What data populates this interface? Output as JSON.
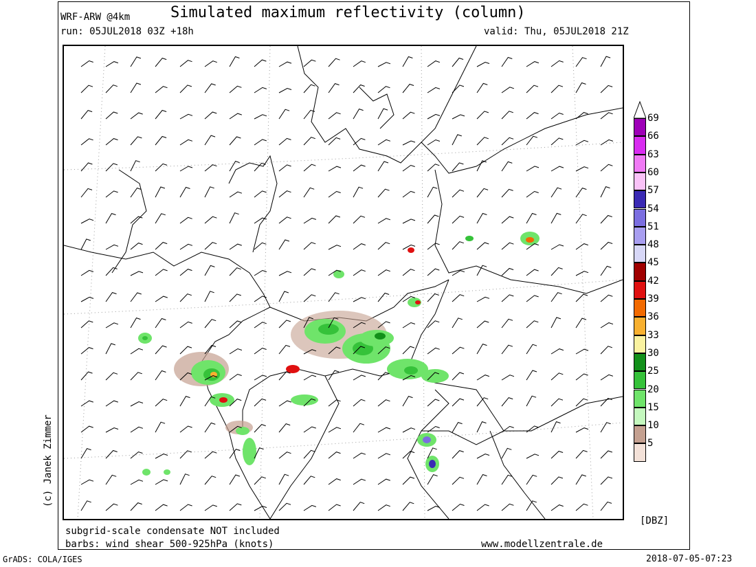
{
  "header": {
    "model": "WRF-ARW @4km",
    "title": "Simulated maximum reflectivity (column)",
    "run": "run: 05JUL2018 03Z +18h",
    "valid": "valid: Thu, 05JUL2018 21Z"
  },
  "footer": {
    "note1": "subgrid-scale condensate NOT included",
    "note2": "barbs: wind shear 500-925hPa (knots)",
    "website": "www.modellzentrale.de",
    "grads": "GrADS: COLA/IGES",
    "timestamp": "2018-07-05-07:23"
  },
  "credit": "(c) Janek Zimmer",
  "colorbar": {
    "unit": "[DBZ]",
    "levels": [
      {
        "label": "69",
        "color": "#9e00b8"
      },
      {
        "label": "66",
        "color": "#d82cf0"
      },
      {
        "label": "63",
        "color": "#f07af5"
      },
      {
        "label": "60",
        "color": "#f9c2f7"
      },
      {
        "label": "57",
        "color": "#3a2ab4"
      },
      {
        "label": "54",
        "color": "#7b6ee0"
      },
      {
        "label": "51",
        "color": "#a89ef0"
      },
      {
        "label": "48",
        "color": "#d7d7f7"
      },
      {
        "label": "45",
        "color": "#a00000"
      },
      {
        "label": "42",
        "color": "#e01010"
      },
      {
        "label": "39",
        "color": "#f26a00"
      },
      {
        "label": "36",
        "color": "#f8b030"
      },
      {
        "label": "33",
        "color": "#faf2a0"
      },
      {
        "label": "30",
        "color": "#12901a"
      },
      {
        "label": "25",
        "color": "#36c23a"
      },
      {
        "label": "20",
        "color": "#6fe46a"
      },
      {
        "label": "15",
        "color": "#c4f8be"
      },
      {
        "label": "10",
        "color": "#c4a090"
      },
      {
        "label": "5",
        "color": "#f3e1d8"
      }
    ]
  },
  "map_colors": {
    "land_border": "#000000",
    "graticule": "#9a9a9a",
    "barb": "#000000"
  }
}
